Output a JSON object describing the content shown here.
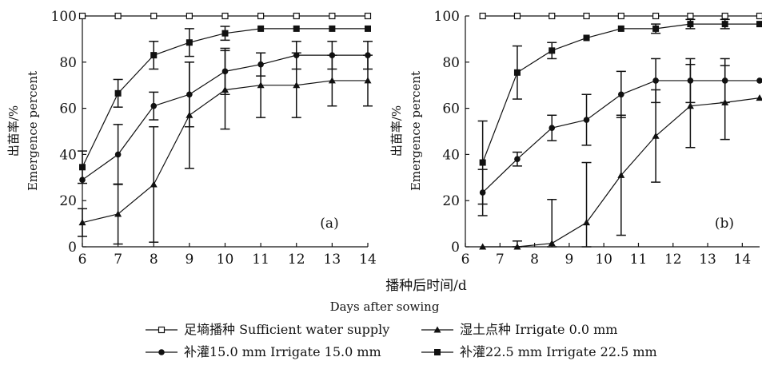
{
  "chart_data": [
    {
      "panel": "a",
      "type": "line",
      "panel_label": "(a)",
      "ylabel_cn": "出苗率/%",
      "ylabel_en": "Emergence percent",
      "xlim": [
        6,
        14
      ],
      "ylim": [
        0,
        100
      ],
      "x_ticks": [
        6,
        7,
        8,
        9,
        10,
        11,
        12,
        13,
        14
      ],
      "y_ticks": [
        0,
        20,
        40,
        60,
        80,
        100
      ],
      "series": [
        {
          "name": "足墒播种 Sufficient water supply",
          "marker": "open-square",
          "x": [
            6,
            7,
            8,
            9,
            10,
            11,
            12,
            13,
            14
          ],
          "values": [
            100,
            100,
            100,
            100,
            100,
            100,
            100,
            100,
            100
          ],
          "error": [
            0,
            0,
            0,
            0,
            0,
            0,
            0,
            0,
            0
          ]
        },
        {
          "name": "湿土点种 Irrigate 0.0 mm",
          "marker": "triangle",
          "x": [
            6,
            7,
            8,
            9,
            10,
            11,
            12,
            13,
            14
          ],
          "values": [
            10.5,
            14.2,
            27,
            57,
            68,
            70,
            70,
            72,
            72
          ],
          "error": [
            6,
            13,
            25,
            23,
            17,
            14,
            14,
            11,
            11
          ]
        },
        {
          "name": "补灌15.0 mm Irrigate 15.0 mm",
          "marker": "circle",
          "x": [
            6,
            7,
            8,
            9,
            10,
            11,
            12,
            13,
            14
          ],
          "values": [
            29,
            40,
            61,
            66,
            76,
            79,
            83,
            83,
            83
          ],
          "error": [
            0,
            13,
            6,
            14,
            10,
            5,
            6,
            6,
            6
          ]
        },
        {
          "name": "补灌22.5 mm Irrigate 22.5 mm",
          "marker": "filled-square",
          "x": [
            6,
            7,
            8,
            9,
            10,
            11,
            12,
            13,
            14
          ],
          "values": [
            34.5,
            66.5,
            83,
            88.5,
            92.5,
            94.5,
            94.5,
            94.5,
            94.5
          ],
          "error": [
            7,
            6,
            6,
            6,
            3,
            0,
            0,
            0,
            0
          ]
        }
      ]
    },
    {
      "panel": "b",
      "type": "line",
      "panel_label": "(b)",
      "ylabel_cn": "出苗率/%",
      "ylabel_en": "Emergence percent",
      "xlim": [
        6,
        14.5
      ],
      "ylim": [
        0,
        100
      ],
      "x_ticks": [
        6,
        7,
        8,
        9,
        10,
        11,
        12,
        13,
        14
      ],
      "y_ticks": [
        0,
        20,
        40,
        60,
        80,
        100
      ],
      "series": [
        {
          "name": "足墒播种 Sufficient water supply",
          "marker": "open-square",
          "x": [
            6.5,
            7.5,
            8.5,
            9.5,
            10.5,
            11.5,
            12.5,
            13.5,
            14.5
          ],
          "values": [
            100,
            100,
            100,
            100,
            100,
            100,
            100,
            100,
            100
          ],
          "error": [
            0,
            0,
            0,
            0,
            0,
            0,
            0,
            0,
            0
          ]
        },
        {
          "name": "湿土点种 Irrigate 0.0 mm",
          "marker": "triangle",
          "x": [
            6.5,
            7.5,
            8.5,
            9.5,
            10.5,
            11.5,
            12.5,
            13.5,
            14.5
          ],
          "values": [
            0,
            0,
            1.5,
            10.5,
            31,
            48,
            61,
            62.5,
            64.5
          ],
          "error": [
            0,
            2.5,
            19,
            26,
            26,
            20,
            18,
            16,
            0
          ]
        },
        {
          "name": "补灌15.0 mm Irrigate 15.0 mm",
          "marker": "circle",
          "x": [
            6.5,
            7.5,
            8.5,
            9.5,
            10.5,
            11.5,
            12.5,
            13.5,
            14.5
          ],
          "values": [
            23.5,
            38,
            51.5,
            55,
            66,
            72,
            72,
            72,
            72
          ],
          "error": [
            10,
            3,
            5.5,
            11,
            10,
            9.5,
            9.5,
            9.5,
            0
          ]
        },
        {
          "name": "补灌22.5 mm Irrigate 22.5 mm",
          "marker": "filled-square",
          "x": [
            6.5,
            7.5,
            8.5,
            9.5,
            10.5,
            11.5,
            12.5,
            13.5,
            14.5
          ],
          "values": [
            36.5,
            75.5,
            85,
            90.5,
            94.5,
            94.5,
            96.5,
            96.5,
            96.5
          ],
          "error": [
            18,
            11.5,
            3.5,
            0,
            0,
            2,
            2,
            2,
            0
          ]
        }
      ]
    }
  ],
  "xlabel_cn": "播种后时间/d",
  "xlabel_en": "Days after sowing",
  "legend": [
    {
      "marker": "open-square",
      "label": "足墒播种 Sufficient water supply"
    },
    {
      "marker": "triangle",
      "label": "湿土点种 Irrigate 0.0 mm"
    },
    {
      "marker": "circle",
      "label": "补灌15.0 mm Irrigate 15.0 mm"
    },
    {
      "marker": "filled-square",
      "label": "补灌22.5 mm Irrigate 22.5 mm"
    }
  ],
  "colors": {
    "ink": "#111111",
    "background": "#ffffff"
  }
}
